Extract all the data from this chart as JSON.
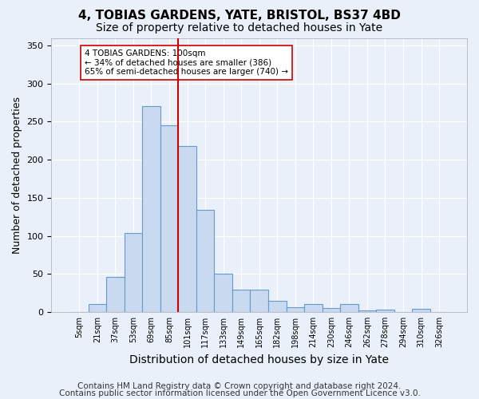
{
  "title1": "4, TOBIAS GARDENS, YATE, BRISTOL, BS37 4BD",
  "title2": "Size of property relative to detached houses in Yate",
  "xlabel": "Distribution of detached houses by size in Yate",
  "ylabel": "Number of detached properties",
  "categories": [
    "5sqm",
    "21sqm",
    "37sqm",
    "53sqm",
    "69sqm",
    "85sqm",
    "101sqm",
    "117sqm",
    "133sqm",
    "149sqm",
    "165sqm",
    "182sqm",
    "198sqm",
    "214sqm",
    "230sqm",
    "246sqm",
    "262sqm",
    "278sqm",
    "294sqm",
    "310sqm",
    "326sqm"
  ],
  "values": [
    0,
    10,
    46,
    104,
    270,
    245,
    218,
    134,
    50,
    29,
    29,
    15,
    6,
    10,
    5,
    10,
    2,
    3,
    0,
    4,
    0
  ],
  "bar_color": "#c9d9f0",
  "bar_edge_color": "#6699cc",
  "vline_index": 5.5,
  "vline_color": "#cc0000",
  "annotation_text": "4 TOBIAS GARDENS: 100sqm\n← 34% of detached houses are smaller (386)\n65% of semi-detached houses are larger (740) →",
  "annotation_box_color": "#ffffff",
  "annotation_box_edge_color": "#cc0000",
  "ylim": [
    0,
    360
  ],
  "yticks": [
    0,
    50,
    100,
    150,
    200,
    250,
    300,
    350
  ],
  "footer1": "Contains HM Land Registry data © Crown copyright and database right 2024.",
  "footer2": "Contains public sector information licensed under the Open Government Licence v3.0.",
  "background_color": "#eaf0f9",
  "grid_color": "#ffffff",
  "title1_fontsize": 11,
  "title2_fontsize": 10,
  "xlabel_fontsize": 10,
  "ylabel_fontsize": 9,
  "footer_fontsize": 7.5
}
